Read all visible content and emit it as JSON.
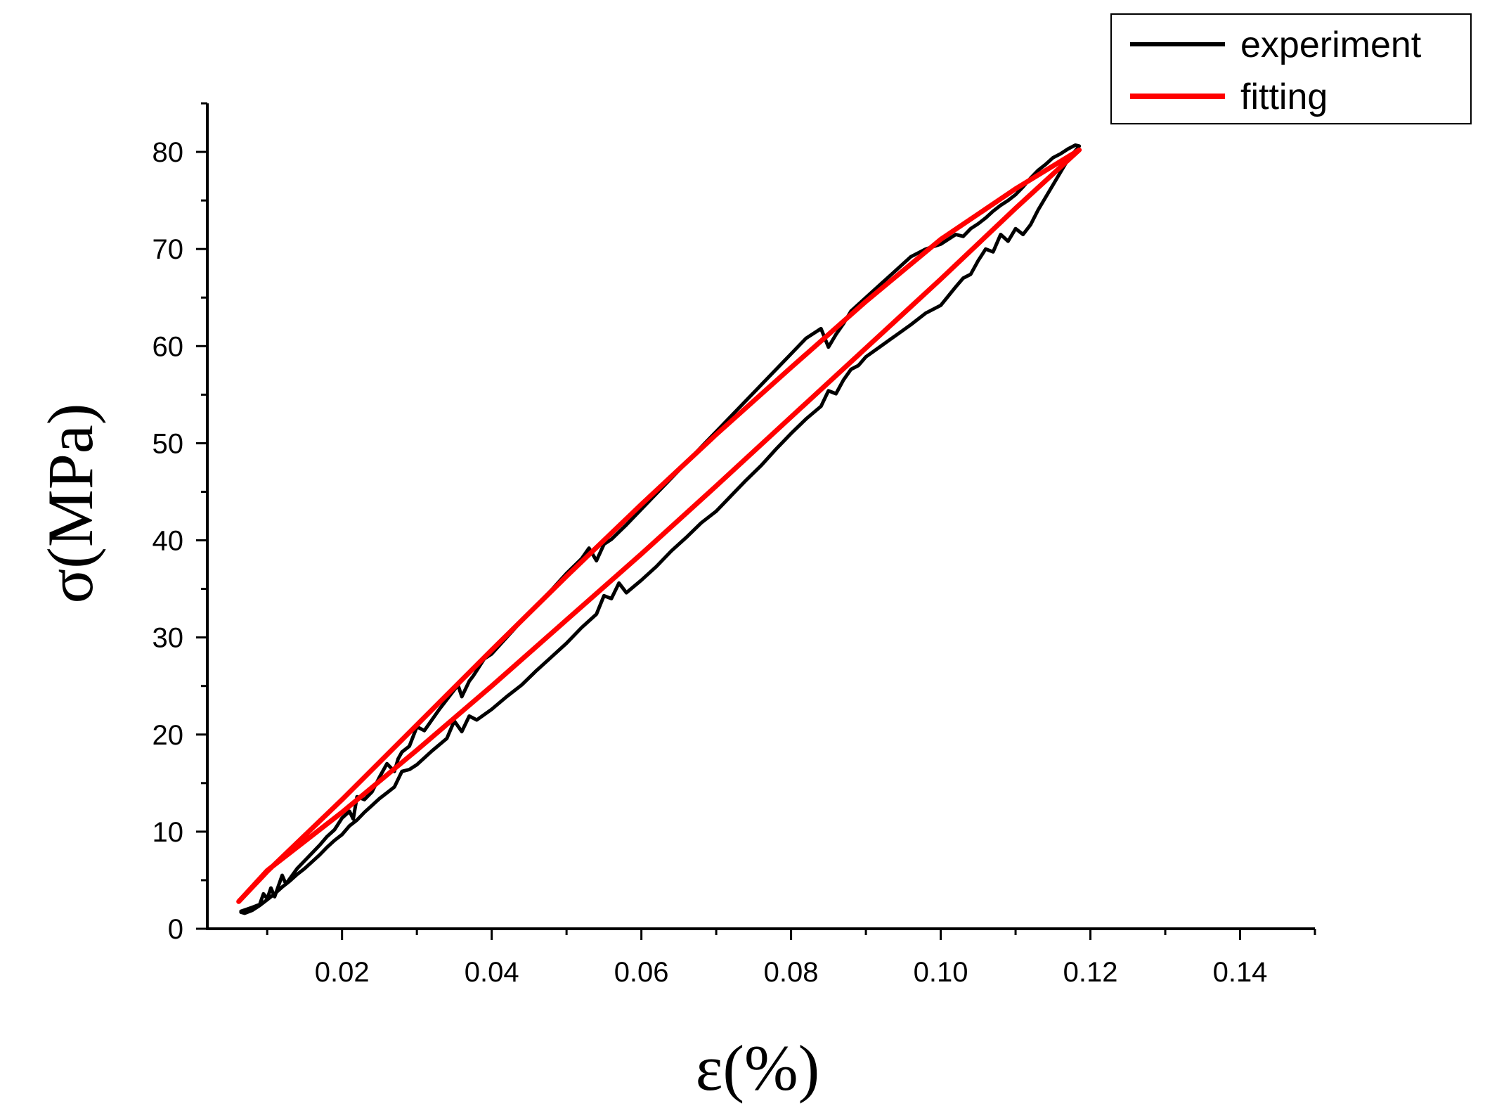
{
  "chart_data": {
    "type": "line",
    "xlabel": "ε(%)",
    "ylabel": "σ(MPa)",
    "xlim": [
      0.002,
      0.15
    ],
    "ylim": [
      0,
      85
    ],
    "x_ticks": [
      {
        "value": 0.02,
        "label": "0.02"
      },
      {
        "value": 0.04,
        "label": "0.04"
      },
      {
        "value": 0.06,
        "label": "0.06"
      },
      {
        "value": 0.08,
        "label": "0.08"
      },
      {
        "value": 0.1,
        "label": "0.10"
      },
      {
        "value": 0.12,
        "label": "0.12"
      },
      {
        "value": 0.14,
        "label": "0.14"
      }
    ],
    "y_ticks": [
      {
        "value": 0,
        "label": "0"
      },
      {
        "value": 10,
        "label": "10"
      },
      {
        "value": 20,
        "label": "20"
      },
      {
        "value": 30,
        "label": "30"
      },
      {
        "value": 40,
        "label": "40"
      },
      {
        "value": 50,
        "label": "50"
      },
      {
        "value": 60,
        "label": "60"
      },
      {
        "value": 70,
        "label": "70"
      },
      {
        "value": 80,
        "label": "80"
      }
    ],
    "grid": false,
    "legend_position": "top-right",
    "series": [
      {
        "name": "experiment",
        "color": "#000000",
        "x": [
          0.0065,
          0.008,
          0.009,
          0.0095,
          0.01,
          0.0105,
          0.011,
          0.012,
          0.0125,
          0.014,
          0.015,
          0.016,
          0.017,
          0.018,
          0.019,
          0.02,
          0.021,
          0.0215,
          0.022,
          0.023,
          0.024,
          0.025,
          0.026,
          0.027,
          0.0275,
          0.028,
          0.029,
          0.03,
          0.031,
          0.033,
          0.035,
          0.0355,
          0.036,
          0.037,
          0.0375,
          0.038,
          0.039,
          0.04,
          0.042,
          0.044,
          0.046,
          0.048,
          0.05,
          0.052,
          0.053,
          0.054,
          0.055,
          0.056,
          0.058,
          0.06,
          0.062,
          0.064,
          0.066,
          0.068,
          0.07,
          0.072,
          0.074,
          0.076,
          0.078,
          0.08,
          0.082,
          0.084,
          0.085,
          0.086,
          0.087,
          0.088,
          0.09,
          0.092,
          0.094,
          0.096,
          0.098,
          0.1,
          0.102,
          0.103,
          0.104,
          0.105,
          0.106,
          0.107,
          0.108,
          0.109,
          0.11,
          0.111,
          0.112,
          0.113,
          0.114,
          0.115,
          0.116,
          0.117,
          0.118,
          0.1185,
          0.117,
          0.116,
          0.115,
          0.114,
          0.113,
          0.112,
          0.111,
          0.11,
          0.109,
          0.108,
          0.107,
          0.106,
          0.105,
          0.104,
          0.103,
          0.102,
          0.1,
          0.098,
          0.096,
          0.094,
          0.092,
          0.09,
          0.089,
          0.088,
          0.087,
          0.086,
          0.085,
          0.084,
          0.082,
          0.08,
          0.078,
          0.076,
          0.074,
          0.072,
          0.07,
          0.068,
          0.066,
          0.064,
          0.062,
          0.06,
          0.058,
          0.057,
          0.056,
          0.055,
          0.054,
          0.052,
          0.05,
          0.048,
          0.046,
          0.044,
          0.042,
          0.04,
          0.038,
          0.037,
          0.036,
          0.035,
          0.034,
          0.032,
          0.03,
          0.029,
          0.028,
          0.027,
          0.026,
          0.025,
          0.024,
          0.023,
          0.022,
          0.021,
          0.02,
          0.019,
          0.018,
          0.017,
          0.016,
          0.015,
          0.014,
          0.013,
          0.012,
          0.011,
          0.01,
          0.009,
          0.008,
          0.007,
          0.0065
        ],
        "y": [
          1.8,
          2.2,
          2.5,
          3.6,
          3.1,
          4.2,
          3.3,
          5.5,
          4.6,
          6.2,
          7.0,
          7.8,
          8.6,
          9.5,
          10.2,
          11.4,
          12.1,
          11.3,
          13.6,
          13.3,
          14.1,
          15.6,
          17.0,
          16.2,
          17.5,
          18.2,
          18.8,
          20.8,
          20.4,
          22.6,
          24.6,
          25.1,
          23.9,
          25.5,
          26.0,
          26.6,
          27.8,
          28.3,
          30.0,
          31.7,
          33.3,
          34.9,
          36.6,
          38.1,
          39.2,
          37.9,
          39.6,
          40.1,
          41.6,
          43.2,
          44.8,
          46.4,
          48.0,
          49.6,
          51.2,
          52.8,
          54.4,
          56.0,
          57.6,
          59.2,
          60.8,
          61.8,
          59.9,
          61.2,
          62.3,
          63.6,
          65.0,
          66.4,
          67.8,
          69.2,
          70.0,
          70.5,
          71.5,
          71.3,
          72.1,
          72.6,
          73.2,
          73.9,
          74.5,
          75.0,
          75.6,
          76.4,
          77.3,
          78.1,
          78.7,
          79.4,
          79.8,
          80.3,
          80.7,
          80.6,
          79.2,
          77.9,
          76.6,
          75.3,
          74.0,
          72.5,
          71.5,
          72.1,
          70.8,
          71.5,
          69.7,
          70.0,
          68.8,
          67.4,
          67.0,
          66.1,
          64.2,
          63.4,
          62.2,
          61.1,
          60.0,
          58.9,
          58.0,
          57.6,
          56.5,
          55.1,
          55.4,
          53.8,
          52.5,
          51.0,
          49.4,
          47.7,
          46.2,
          44.6,
          43.0,
          41.8,
          40.3,
          38.9,
          37.3,
          35.9,
          34.6,
          35.6,
          34.0,
          34.3,
          32.4,
          31.0,
          29.4,
          28.0,
          26.6,
          25.1,
          23.9,
          22.6,
          21.5,
          21.9,
          20.3,
          21.4,
          19.6,
          18.3,
          16.9,
          16.4,
          16.2,
          14.6,
          14.0,
          13.4,
          12.7,
          12.0,
          11.2,
          10.6,
          9.7,
          9.1,
          8.4,
          7.6,
          6.9,
          6.2,
          5.6,
          4.9,
          4.3,
          3.6,
          3.0,
          2.4,
          1.9,
          1.6,
          1.7
        ]
      },
      {
        "name": "fitting",
        "color": "#ff0000",
        "x": [
          0.0062,
          0.01,
          0.02,
          0.03,
          0.04,
          0.05,
          0.06,
          0.07,
          0.08,
          0.09,
          0.1,
          0.11,
          0.1185,
          0.11,
          0.1,
          0.09,
          0.08,
          0.07,
          0.06,
          0.05,
          0.04,
          0.03,
          0.02,
          0.01,
          0.0062
        ],
        "y": [
          2.8,
          5.9,
          13.3,
          21.0,
          28.7,
          36.3,
          43.7,
          50.9,
          57.8,
          64.6,
          71.0,
          76.2,
          80.2,
          74.2,
          66.9,
          59.8,
          52.7,
          45.6,
          38.6,
          31.8,
          25.0,
          18.4,
          12.0,
          6.0,
          2.8
        ]
      }
    ]
  }
}
